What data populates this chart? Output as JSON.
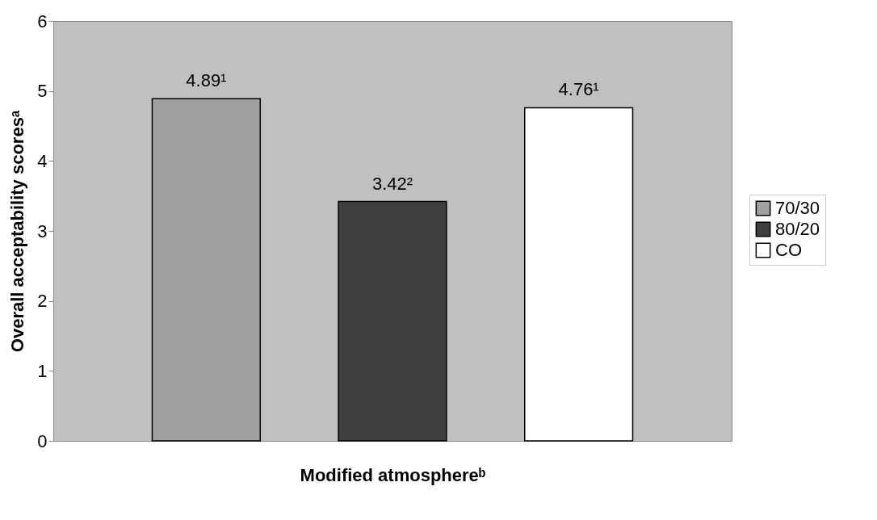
{
  "chart_data": {
    "type": "bar",
    "xlabel": "Modified atmosphereᵇ",
    "ylabel": "Overall acceptability scoresᵃ",
    "categories": [
      null
    ],
    "series": [
      {
        "name": "70/30",
        "color": "#a0a0a0",
        "values": [
          4.89
        ],
        "value_labels": [
          "4.89¹"
        ]
      },
      {
        "name": "80/20",
        "color": "#404040",
        "values": [
          3.42
        ],
        "value_labels": [
          "3.42²"
        ]
      },
      {
        "name": "CO",
        "color": "#ffffff",
        "values": [
          4.76
        ],
        "value_labels": [
          "4.76¹"
        ]
      }
    ],
    "ylim": [
      0,
      6
    ],
    "yticks": [
      0,
      1,
      2,
      3,
      4,
      5,
      6
    ],
    "grid": false,
    "legend": "right"
  }
}
